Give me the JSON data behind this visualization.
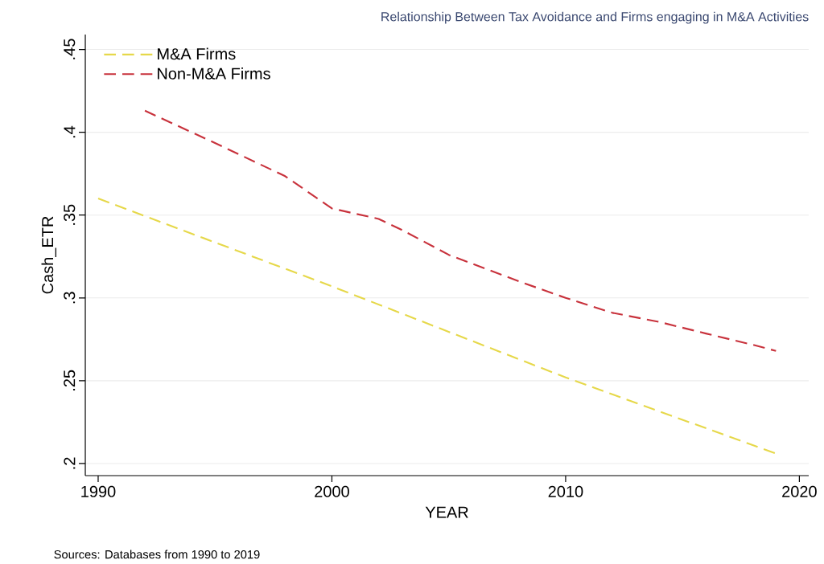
{
  "chart_data": {
    "type": "line",
    "title": "Relationship Between Tax Avoidance and Firms engaging in M&A Activities",
    "xlabel": "YEAR",
    "ylabel": "Cash_ETR",
    "annotations": [
      "Sources: Databases from 1990 to 2019"
    ],
    "series": [
      {
        "name": "M&A Firms",
        "color": "#e6d84a",
        "x": [
          1990,
          2000,
          2010,
          2019
        ],
        "values": [
          0.36,
          0.307,
          0.252,
          0.206
        ]
      },
      {
        "name": "Non-M&A Firms",
        "color": "#c8323c",
        "x": [
          1992,
          1995,
          1998,
          2000,
          2002,
          2003,
          2005,
          2008,
          2010,
          2012,
          2014,
          2016,
          2018,
          2019
        ],
        "values": [
          0.413,
          0.3935,
          0.3735,
          0.354,
          0.3477,
          0.341,
          0.326,
          0.31,
          0.3,
          0.291,
          0.2855,
          0.2785,
          0.2717,
          0.268
        ]
      }
    ],
    "xlim": [
      1989.45,
      2020.4
    ],
    "ylim": [
      0.1927,
      0.459
    ],
    "xticks": [
      1990,
      2000,
      2010,
      2020
    ],
    "yticks": [
      {
        "value": 0.2,
        "label": ".2"
      },
      {
        "value": 0.25,
        "label": ".25"
      },
      {
        "value": 0.3,
        "label": ".3"
      },
      {
        "value": 0.35,
        "label": ".35"
      },
      {
        "value": 0.4,
        "label": ".4"
      },
      {
        "value": 0.45,
        "label": ".45"
      }
    ],
    "grid": "y",
    "legend": "top left",
    "line_style": "dashed",
    "marker": "none"
  }
}
